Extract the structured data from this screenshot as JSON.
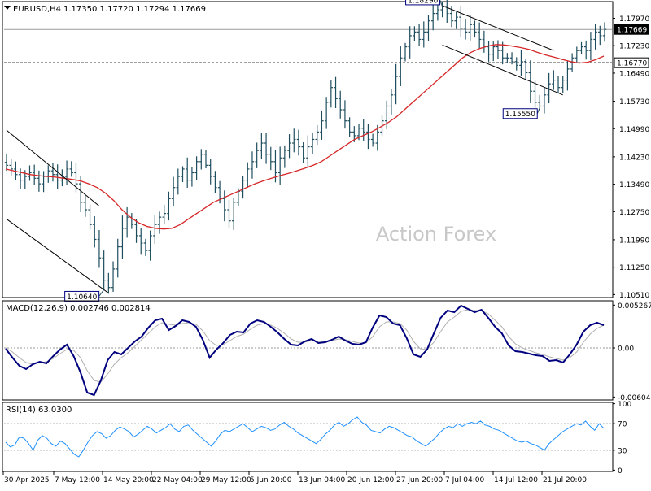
{
  "header": {
    "symbol": "EURUSD,H4",
    "ohlc": "1.17350 1.17720 1.17294 1.17669"
  },
  "watermark": "Action Forex",
  "colors": {
    "background": "#ffffff",
    "border": "#000000",
    "bars": "#1e4e5e",
    "moving_average": "#d62728",
    "channel": "#000000",
    "macd_line": "#00007f",
    "signal_line": "#b0b0b0",
    "rsi_line": "#1e90ff",
    "grid": "#9a9a9a",
    "watermark": "#c8c8c8"
  },
  "chart_data": [
    {
      "type": "ohlc",
      "panel": "price",
      "series": [
        {
          "name": "EURUSD,H4",
          "style": "ohlc-bars",
          "close": [
            1.14,
            1.139,
            1.1375,
            1.136,
            1.137,
            1.138,
            1.1365,
            1.135,
            1.137,
            1.1385,
            1.1375,
            1.136,
            1.137,
            1.139,
            1.138,
            1.135,
            1.13,
            1.128,
            1.124,
            1.12,
            1.115,
            1.109,
            1.107,
            1.112,
            1.118,
            1.123,
            1.126,
            1.124,
            1.121,
            1.119,
            1.117,
            1.121,
            1.124,
            1.126,
            1.127,
            1.131,
            1.134,
            1.137,
            1.139,
            1.136,
            1.138,
            1.141,
            1.143,
            1.14,
            1.137,
            1.134,
            1.131,
            1.128,
            1.125,
            1.13,
            1.133,
            1.136,
            1.139,
            1.141,
            1.144,
            1.146,
            1.143,
            1.141,
            1.138,
            1.142,
            1.144,
            1.146,
            1.147,
            1.145,
            1.142,
            1.145,
            1.147,
            1.149,
            1.152,
            1.157,
            1.161,
            1.158,
            1.155,
            1.152,
            1.149,
            1.148,
            1.15,
            1.149,
            1.147,
            1.146,
            1.149,
            1.152,
            1.156,
            1.159,
            1.164,
            1.169,
            1.172,
            1.175,
            1.176,
            1.174,
            1.176,
            1.179,
            1.181,
            1.182,
            1.1829,
            1.181,
            1.179,
            1.18,
            1.177,
            1.176,
            1.178,
            1.176,
            1.174,
            1.172,
            1.17,
            1.172,
            1.171,
            1.169,
            1.169,
            1.168,
            1.167,
            1.168,
            1.165,
            1.16,
            1.157,
            1.156,
            1.159,
            1.162,
            1.163,
            1.161,
            1.163,
            1.166,
            1.169,
            1.171,
            1.172,
            1.171,
            1.174,
            1.176,
            1.175,
            1.1767
          ],
          "markers": {
            "swing_high": 1.1829,
            "swing_low_may": 1.1064,
            "swing_low_jul": 1.1555
          }
        },
        {
          "name": "Moving average",
          "style": "line",
          "values": [
            1.139,
            1.1385,
            1.138,
            1.1375,
            1.1372,
            1.137,
            1.1368,
            1.1365,
            1.1362,
            1.1358,
            1.135,
            1.134,
            1.1325,
            1.1305,
            1.128,
            1.126,
            1.1245,
            1.1235,
            1.123,
            1.1228,
            1.123,
            1.124,
            1.1255,
            1.127,
            1.1285,
            1.13,
            1.131,
            1.132,
            1.133,
            1.134,
            1.135,
            1.1358,
            1.1365,
            1.1372,
            1.1378,
            1.1385,
            1.1392,
            1.14,
            1.141,
            1.1425,
            1.144,
            1.1455,
            1.147,
            1.148,
            1.149,
            1.1502,
            1.1515,
            1.153,
            1.155,
            1.157,
            1.159,
            1.161,
            1.163,
            1.165,
            1.167,
            1.169,
            1.1705,
            1.1715,
            1.1722,
            1.1726,
            1.1725,
            1.1722,
            1.1718,
            1.1713,
            1.1705,
            1.1698,
            1.1692,
            1.1686,
            1.168,
            1.1676,
            1.1678,
            1.1685,
            1.1695
          ]
        }
      ],
      "y_ticks": [
        "1.17970",
        "1.17230",
        "1.16490",
        "1.15730",
        "1.14990",
        "1.14230",
        "1.13490",
        "1.12750",
        "1.11990",
        "1.11250",
        "1.10510"
      ],
      "ylim": [
        1.1043,
        1.1842
      ],
      "price_labels": [
        {
          "value": 1.17669,
          "text": "1.17669",
          "style": "filled"
        },
        {
          "value": 1.1677,
          "text": "1.16770",
          "style": "outlined"
        }
      ],
      "horizontal_lines": [
        {
          "value": 1.17669,
          "style": "solid"
        },
        {
          "value": 1.1677,
          "style": "dashed"
        }
      ],
      "callouts": [
        {
          "text": "1.18290",
          "value": 1.1829
        },
        {
          "text": "1.10640",
          "value": 1.1064
        },
        {
          "text": "1.15550",
          "value": 1.1555
        }
      ],
      "trendlines": [
        {
          "name": "may-channel-upper",
          "from": [
            0,
            1.1495
          ],
          "to": [
            20,
            1.129
          ]
        },
        {
          "name": "may-channel-lower",
          "from": [
            0,
            1.1255
          ],
          "to": [
            22,
            1.1055
          ]
        },
        {
          "name": "jul-channel-upper",
          "from": [
            94,
            1.1831
          ],
          "to": [
            118,
            1.171
          ]
        },
        {
          "name": "jul-channel-lower",
          "from": [
            94,
            1.1725
          ],
          "to": [
            120,
            1.159
          ]
        }
      ]
    },
    {
      "type": "line",
      "panel": "macd",
      "title": "MACD(12,26,9) 0.002746 0.002814",
      "series": [
        {
          "name": "MACD",
          "values": [
            -0.0001,
            -0.0012,
            -0.0022,
            -0.0026,
            -0.002,
            -0.0017,
            -0.0019,
            -0.001,
            -0.0002,
            0.0004,
            -0.001,
            -0.003,
            -0.0055,
            -0.0058,
            -0.004,
            -0.0015,
            -0.0005,
            -0.0008,
            0.0,
            0.0008,
            0.0014,
            0.0025,
            0.0034,
            0.0036,
            0.0022,
            0.0027,
            0.0034,
            0.0032,
            0.0026,
            0.001,
            -0.0012,
            -0.0002,
            0.0006,
            0.0016,
            0.002,
            0.0019,
            0.003,
            0.0034,
            0.0032,
            0.0026,
            0.0019,
            0.0011,
            0.0004,
            0.0003,
            0.0008,
            0.0011,
            0.0006,
            0.0007,
            0.001,
            0.0014,
            0.0009,
            0.0005,
            0.0004,
            0.0007,
            0.0025,
            0.004,
            0.0038,
            0.003,
            0.0028,
            0.0012,
            -0.0008,
            -0.0011,
            -0.0002,
            0.0018,
            0.0037,
            0.0046,
            0.0044,
            0.0052,
            0.0048,
            0.0044,
            0.0047,
            0.0037,
            0.0026,
            0.0018,
            0.0003,
            -0.0004,
            -0.0005,
            -0.0007,
            -0.0009,
            -0.001,
            -0.0016,
            -0.0015,
            -0.0018,
            -0.0008,
            0.0004,
            0.002,
            0.0028,
            0.0031,
            0.0028
          ]
        },
        {
          "name": "Signal",
          "values": [
            0.0,
            -0.0005,
            -0.0012,
            -0.0018,
            -0.002,
            -0.0018,
            -0.0017,
            -0.0013,
            -0.0007,
            -0.0002,
            -0.0003,
            -0.0012,
            -0.0028,
            -0.004,
            -0.0042,
            -0.0032,
            -0.002,
            -0.0012,
            -0.0006,
            0.0002,
            0.001,
            0.0018,
            0.0026,
            0.0031,
            0.0029,
            0.0028,
            0.003,
            0.0031,
            0.0029,
            0.0021,
            0.0009,
            0.0003,
            0.0004,
            0.0009,
            0.0014,
            0.0017,
            0.0023,
            0.0028,
            0.003,
            0.0028,
            0.0024,
            0.0018,
            0.0011,
            0.0007,
            0.0007,
            0.0009,
            0.0008,
            0.0008,
            0.0009,
            0.0011,
            0.001,
            0.0008,
            0.0006,
            0.0006,
            0.0014,
            0.0026,
            0.0032,
            0.0032,
            0.003,
            0.0022,
            0.0008,
            -0.0001,
            -0.0002,
            0.0007,
            0.002,
            0.0032,
            0.0038,
            0.0045,
            0.0047,
            0.0046,
            0.0046,
            0.0042,
            0.0034,
            0.0026,
            0.0014,
            0.0005,
            0.0,
            -0.0003,
            -0.0006,
            -0.0008,
            -0.0011,
            -0.0013,
            -0.0015,
            -0.0012,
            -0.0005,
            0.0007,
            0.0017,
            0.0024,
            0.0028
          ]
        }
      ],
      "y_ticks": [
        "0.005267",
        "0.00",
        "-0.00604"
      ],
      "ylim": [
        -0.0064,
        0.0058
      ],
      "zero_line": true
    },
    {
      "type": "line",
      "panel": "rsi",
      "title": "RSI(14) 63.0300",
      "series": [
        {
          "name": "RSI",
          "values": [
            42,
            35,
            38,
            50,
            48,
            40,
            30,
            45,
            52,
            48,
            40,
            36,
            44,
            40,
            32,
            24,
            20,
            30,
            42,
            52,
            58,
            55,
            48,
            52,
            60,
            65,
            62,
            58,
            50,
            54,
            60,
            66,
            62,
            56,
            60,
            64,
            70,
            62,
            58,
            66,
            68,
            60,
            54,
            48,
            42,
            36,
            44,
            54,
            60,
            58,
            62,
            66,
            70,
            64,
            58,
            62,
            66,
            64,
            60,
            62,
            68,
            72,
            66,
            62,
            56,
            52,
            48,
            44,
            40,
            46,
            54,
            60,
            68,
            72,
            66,
            70,
            76,
            80,
            72,
            68,
            60,
            58,
            56,
            62,
            66,
            64,
            60,
            56,
            52,
            50,
            44,
            40,
            36,
            42,
            48,
            56,
            62,
            66,
            64,
            70,
            66,
            70,
            72,
            70,
            74,
            68,
            66,
            62,
            60,
            56,
            52,
            48,
            44,
            42,
            44,
            40,
            38,
            34,
            30,
            40,
            46,
            52,
            58,
            62,
            66,
            70,
            68,
            74,
            66,
            60,
            70,
            63
          ]
        }
      ],
      "y_ticks": [
        "100",
        "70",
        "30",
        "0"
      ],
      "ylim": [
        -2,
        102
      ],
      "levels": [
        70,
        30
      ]
    }
  ],
  "x_axis": {
    "tick_labels": [
      "30 Apr 2025",
      "7 May 12:00",
      "14 May 20:00",
      "22 May 04:00",
      "29 May 12:00",
      "5 Jun 20:00",
      "13 Jun 04:00",
      "20 Jun 12:00",
      "27 Jun 20:00",
      "7 Jul 04:00",
      "14 Jul 12:00",
      "21 Jul 20:00"
    ]
  }
}
